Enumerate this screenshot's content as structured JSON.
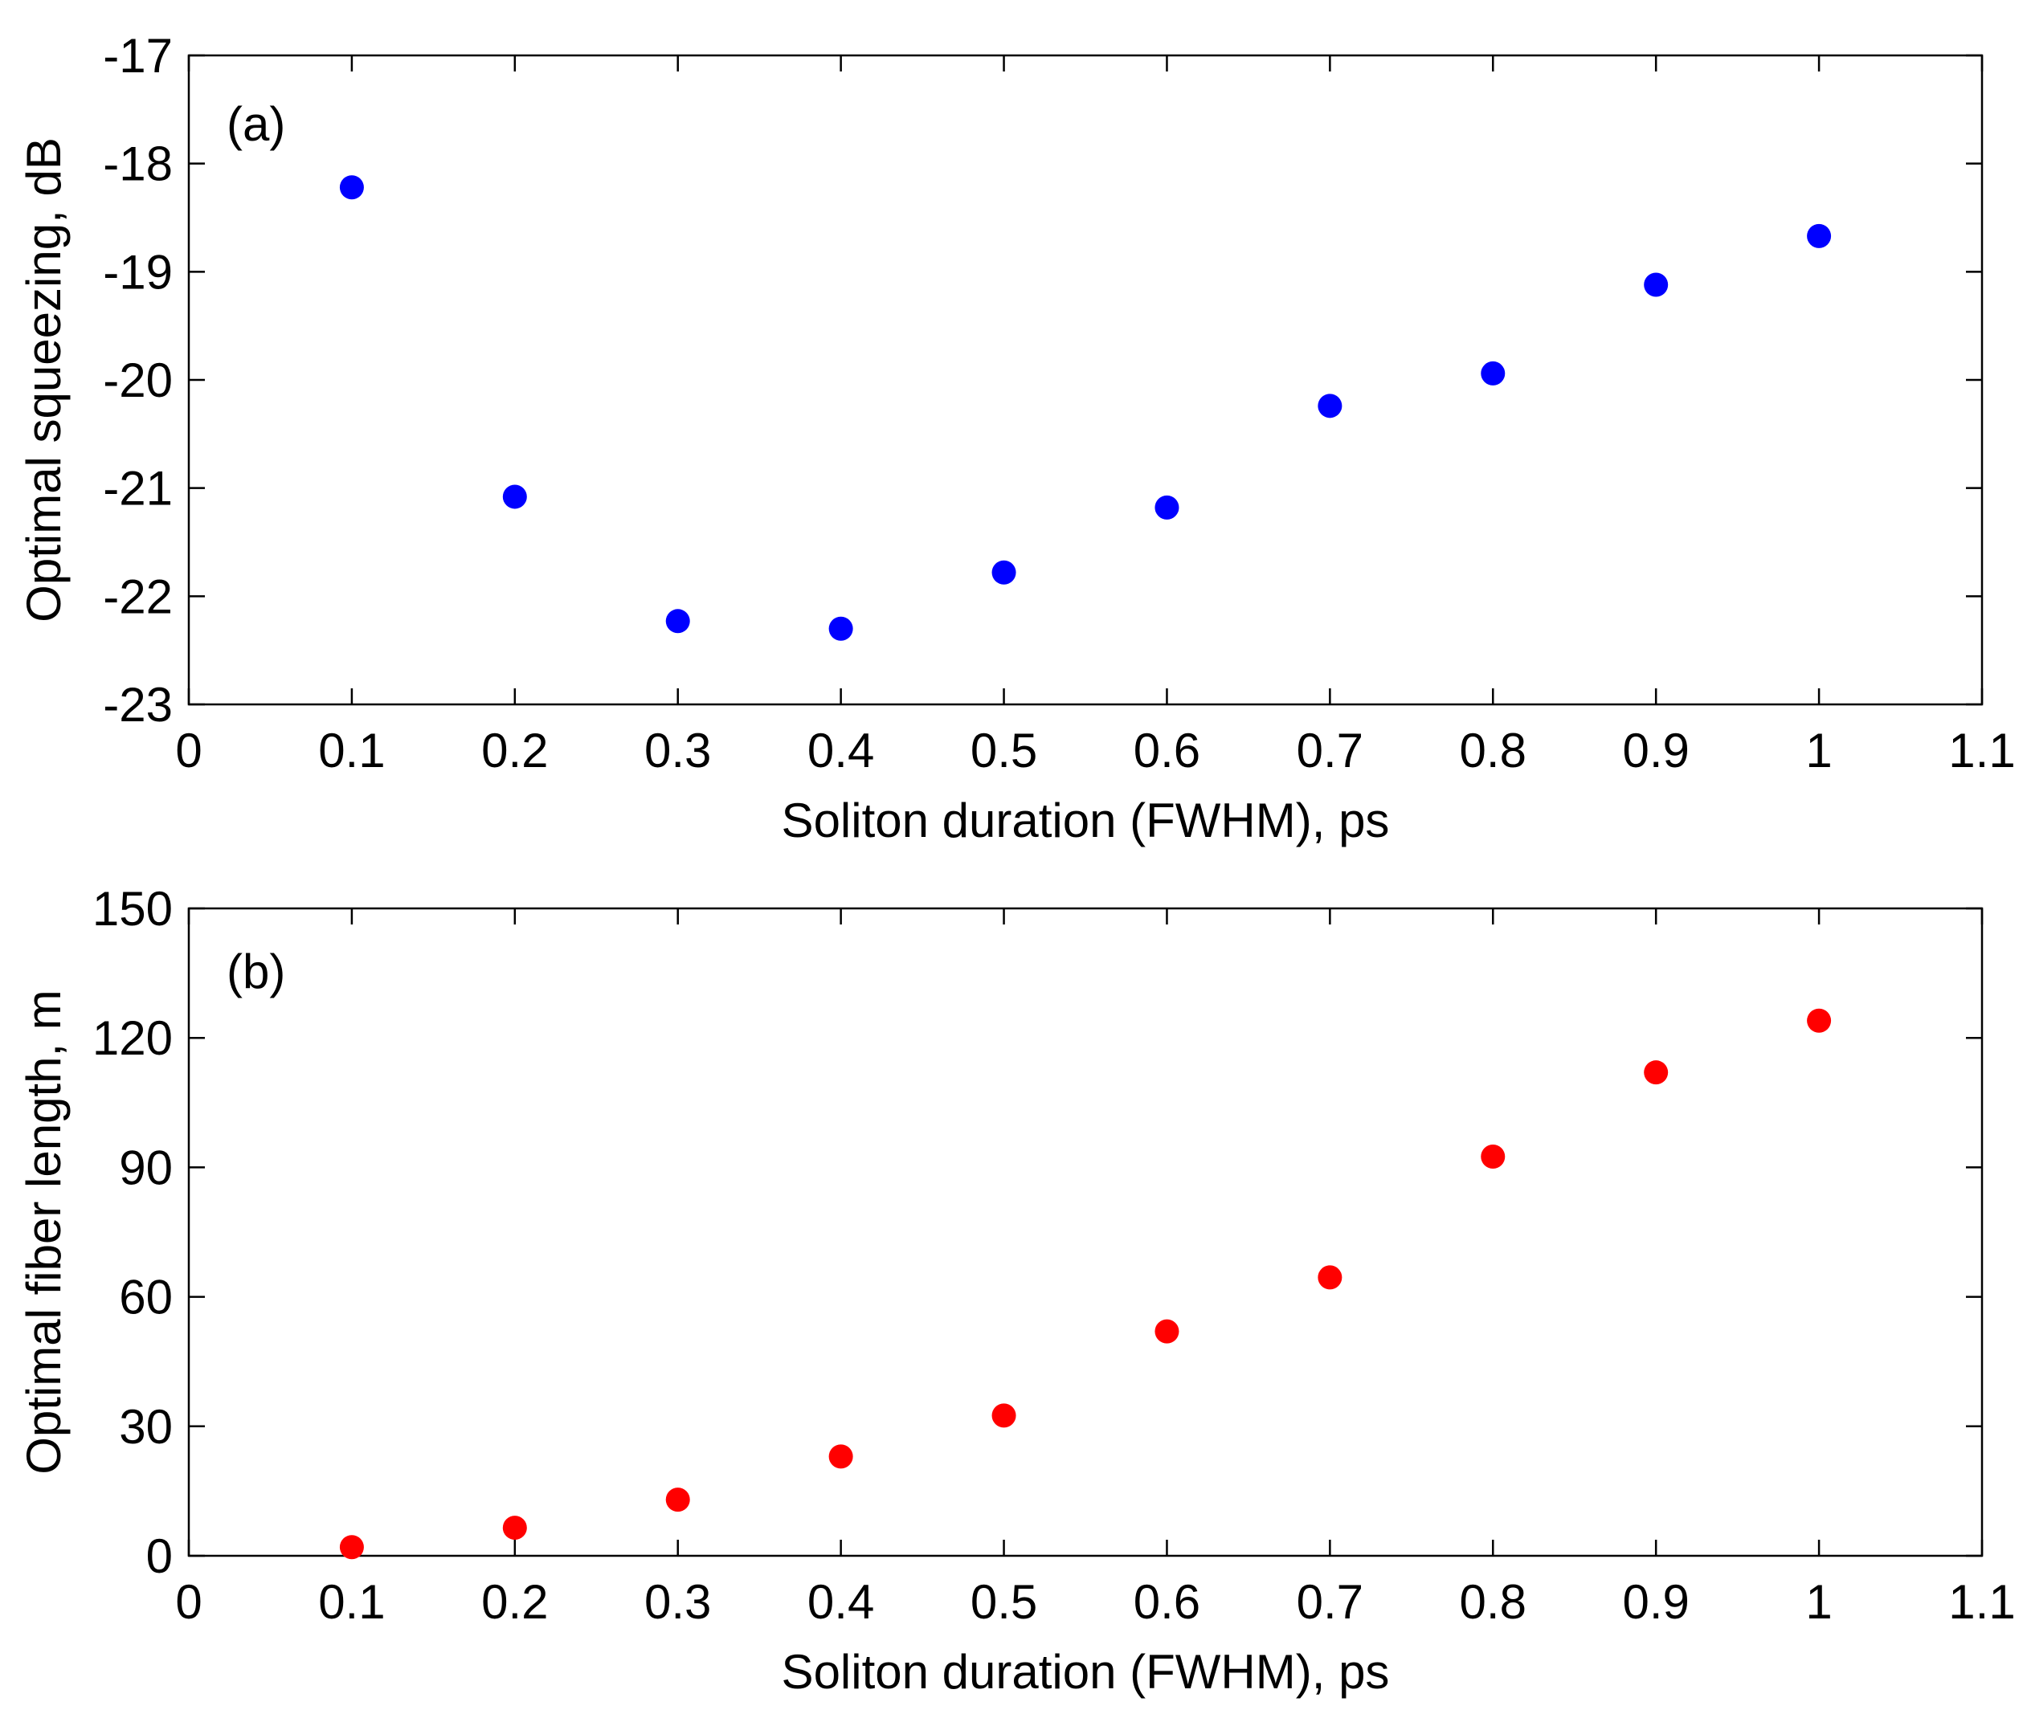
{
  "chart_data": [
    {
      "type": "scatter",
      "panel_label": "(a)",
      "xlabel": "Soliton duration (FWHM), ps",
      "ylabel": "Optimal squeezing, dB",
      "xlim": [
        0,
        1.1
      ],
      "ylim": [
        -23,
        -17
      ],
      "xticks": [
        0,
        0.1,
        0.2,
        0.3,
        0.4,
        0.5,
        0.6,
        0.7,
        0.8,
        0.9,
        1,
        1.1
      ],
      "xtick_labels": [
        "0",
        "0.1",
        "0.2",
        "0.3",
        "0.4",
        "0.5",
        "0.6",
        "0.7",
        "0.8",
        "0.9",
        "1",
        "1.1"
      ],
      "yticks": [
        -23,
        -22,
        -21,
        -20,
        -19,
        -18,
        -17
      ],
      "ytick_labels": [
        "-23",
        "-22",
        "-21",
        "-20",
        "-19",
        "-18",
        "-17"
      ],
      "marker_color": "#0000ff",
      "x": [
        0.1,
        0.2,
        0.3,
        0.4,
        0.5,
        0.6,
        0.7,
        0.8,
        0.9,
        1.0
      ],
      "y": [
        -18.22,
        -21.08,
        -22.23,
        -22.3,
        -21.78,
        -21.18,
        -20.24,
        -19.94,
        -19.12,
        -18.67
      ]
    },
    {
      "type": "scatter",
      "panel_label": "(b)",
      "xlabel": "Soliton duration (FWHM), ps",
      "ylabel": "Optimal fiber length, m",
      "xlim": [
        0,
        1.1
      ],
      "ylim": [
        0,
        150
      ],
      "xticks": [
        0,
        0.1,
        0.2,
        0.3,
        0.4,
        0.5,
        0.6,
        0.7,
        0.8,
        0.9,
        1,
        1.1
      ],
      "xtick_labels": [
        "0",
        "0.1",
        "0.2",
        "0.3",
        "0.4",
        "0.5",
        "0.6",
        "0.7",
        "0.8",
        "0.9",
        "1",
        "1.1"
      ],
      "yticks": [
        0,
        30,
        60,
        90,
        120,
        150
      ],
      "ytick_labels": [
        "0",
        "30",
        "60",
        "90",
        "120",
        "150"
      ],
      "marker_color": "#ff0000",
      "x": [
        0.1,
        0.2,
        0.3,
        0.4,
        0.5,
        0.6,
        0.7,
        0.8,
        0.9,
        1.0
      ],
      "y": [
        2,
        6.5,
        13,
        23,
        32.5,
        52,
        64.5,
        92.5,
        112,
        124
      ]
    }
  ]
}
